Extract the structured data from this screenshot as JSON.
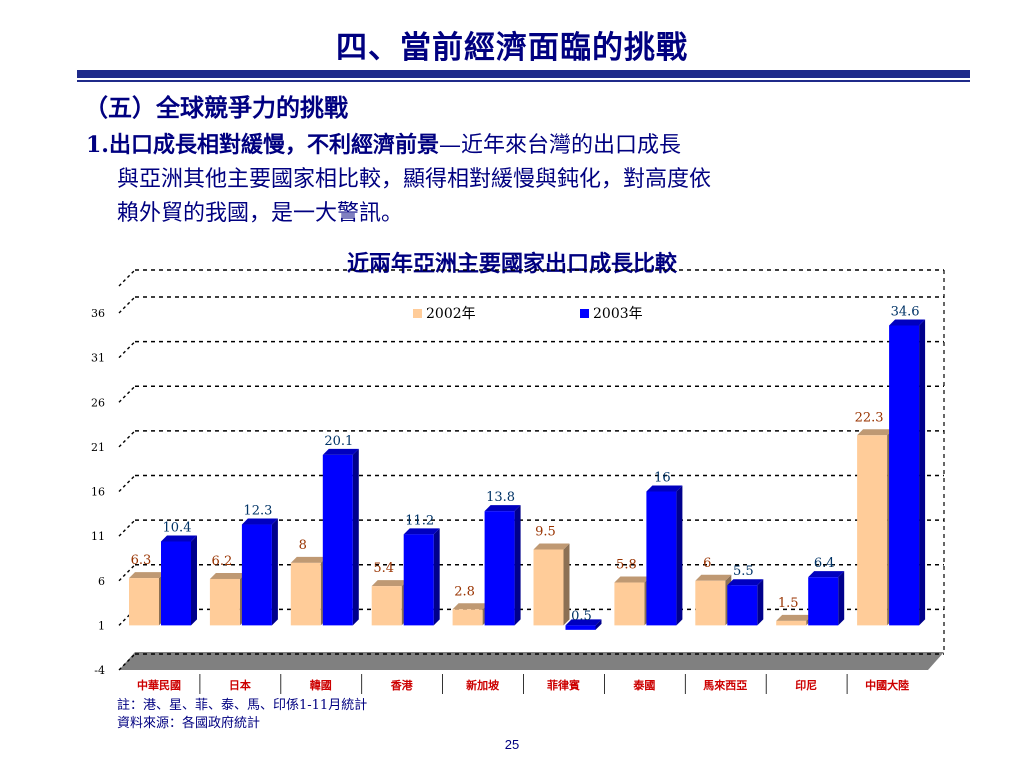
{
  "slide": {
    "title": "四、當前經濟面臨的挑戰",
    "section": "（五）全球競爭力的挑戰",
    "point_number": "1.",
    "point_lead": "出口成長相對緩慢，不利經濟前景",
    "point_dash": "—",
    "point_line1_rest": "近年來台灣的出口成長",
    "point_line2": "與亞洲其他主要國家相比較，顯得相對緩慢與鈍化，對高度依",
    "point_line3": "賴外貿的我國，是一大警訊。",
    "chart_title": "近兩年亞洲主要國家出口成長比較",
    "footnote_1": "註：港、星、菲、泰、馬、印係1-11月統計",
    "footnote_2": "資料來源：各國政府統計",
    "page_number": "25"
  },
  "colors": {
    "title": "#000080",
    "series_2002": "#FFCC99",
    "series_2003": "#0000FF",
    "label_2002": "#993300",
    "label_2003": "#003366",
    "category_label": "#CC0000",
    "floor": "#808080"
  },
  "chart_data": {
    "type": "bar",
    "title": "近兩年亞洲主要國家出口成長比較",
    "categories": [
      "中華民國",
      "日本",
      "韓國",
      "香港",
      "新加坡",
      "菲律賓",
      "泰國",
      "馬來西亞",
      "印尼",
      "中國大陸"
    ],
    "series": [
      {
        "name": "2002年",
        "values": [
          6.3,
          6.2,
          8,
          5.4,
          2.8,
          9.5,
          5.8,
          6,
          1.5,
          22.3
        ]
      },
      {
        "name": "2003年",
        "values": [
          10.4,
          12.3,
          20.1,
          11.2,
          13.8,
          0.5,
          16,
          5.5,
          6.4,
          34.6
        ]
      }
    ],
    "value_labels_2002": [
      "6.3",
      "6.2",
      "8",
      "5.4",
      "2.8",
      "9.5",
      "5.8",
      "6",
      "1.5",
      "22.3"
    ],
    "value_labels_2003": [
      "10.4",
      "12.3",
      "20.1",
      "11.2",
      "13.8",
      "0.5",
      "16",
      "5.5",
      "6.4",
      "34.6"
    ],
    "y_ticks": [
      "-4",
      "1",
      "6",
      "11",
      "16",
      "21",
      "26",
      "31",
      "36"
    ],
    "ylim": [
      -4,
      36
    ],
    "y_tick_values": [
      -4,
      1,
      6,
      11,
      16,
      21,
      26,
      31,
      36
    ],
    "xlabel": "",
    "ylabel": "",
    "grid": true,
    "legend_position": "top"
  }
}
